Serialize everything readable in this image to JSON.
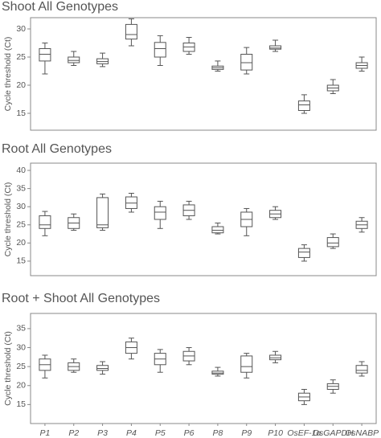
{
  "chart_data": [
    {
      "type": "box",
      "title": "Shoot All Genotypes",
      "y_label": "Cycle threshold (Ct)",
      "ylim": [
        12,
        32
      ],
      "yticks": [
        15,
        20,
        25,
        30
      ],
      "whisker_low": [
        22,
        23.5,
        23.3,
        27,
        23.5,
        25.5,
        22.5,
        22,
        26,
        15,
        18.5,
        22.5
      ],
      "q1": [
        24.3,
        24,
        23.8,
        28.2,
        25,
        26,
        22.8,
        22.7,
        26.4,
        15.5,
        19,
        23
      ],
      "median": [
        25.5,
        24.4,
        24.2,
        29,
        26.5,
        26.8,
        23.1,
        24,
        26.6,
        16.5,
        19.5,
        23.5
      ],
      "q3": [
        26.5,
        25,
        24.7,
        30.8,
        27.6,
        27.5,
        23.4,
        25.5,
        27,
        17.2,
        20,
        24
      ],
      "whisker_high": [
        27.5,
        26,
        25.7,
        31.8,
        28.8,
        28.5,
        24.3,
        26.7,
        28,
        18.3,
        21,
        25
      ]
    },
    {
      "type": "box",
      "title": "Root All Genotypes",
      "y_label": "Cycle threshold (Ct)",
      "ylim": [
        11,
        42
      ],
      "yticks": [
        15,
        20,
        25,
        30,
        35,
        40
      ],
      "whisker_low": [
        22,
        23.5,
        23.5,
        28.5,
        24,
        26.5,
        22.5,
        22,
        26.5,
        15,
        18.5,
        23
      ],
      "q1": [
        24,
        24,
        24.2,
        29.5,
        26.5,
        27.5,
        22.8,
        24.5,
        27,
        16,
        19,
        24
      ],
      "median": [
        25,
        25.5,
        25,
        31,
        28.5,
        29,
        23.5,
        26.5,
        28,
        17.5,
        20,
        25
      ],
      "q3": [
        27.5,
        27,
        32.5,
        32.7,
        30,
        30.5,
        24.5,
        28.5,
        29,
        18.5,
        21.5,
        26
      ],
      "whisker_high": [
        28.7,
        28,
        33.5,
        33.7,
        31.5,
        31.5,
        25.5,
        29.5,
        30,
        19.5,
        22.5,
        27
      ]
    },
    {
      "type": "box",
      "title": "Root + Shoot All Genotypes",
      "y_label": "Cycle threshold (Ct)",
      "ylim": [
        10,
        39
      ],
      "yticks": [
        15,
        20,
        25,
        30,
        35
      ],
      "categories": [
        "P1",
        "P2",
        "P3",
        "P4",
        "P5",
        "P6",
        "P8",
        "P9",
        "P10",
        "OsEF-1α",
        "OsGAPDH",
        "OsNABP"
      ],
      "whisker_low": [
        22,
        23.5,
        23,
        27,
        23.5,
        25.5,
        22.5,
        22,
        26,
        15,
        18,
        22.5
      ],
      "q1": [
        24,
        24,
        24,
        28.5,
        25.5,
        26.5,
        23,
        23.5,
        26.8,
        16,
        19,
        23.3
      ],
      "median": [
        25.5,
        25,
        24.5,
        30,
        27,
        27.8,
        23.3,
        25,
        27.3,
        17,
        19.8,
        24
      ],
      "q3": [
        27,
        26,
        25.3,
        31.5,
        28.5,
        29,
        23.8,
        27.8,
        28,
        18,
        20.5,
        25.3
      ],
      "whisker_high": [
        28,
        27,
        26.3,
        32.5,
        29.5,
        30,
        24.8,
        28.5,
        29,
        19,
        21.5,
        26.3
      ]
    }
  ]
}
